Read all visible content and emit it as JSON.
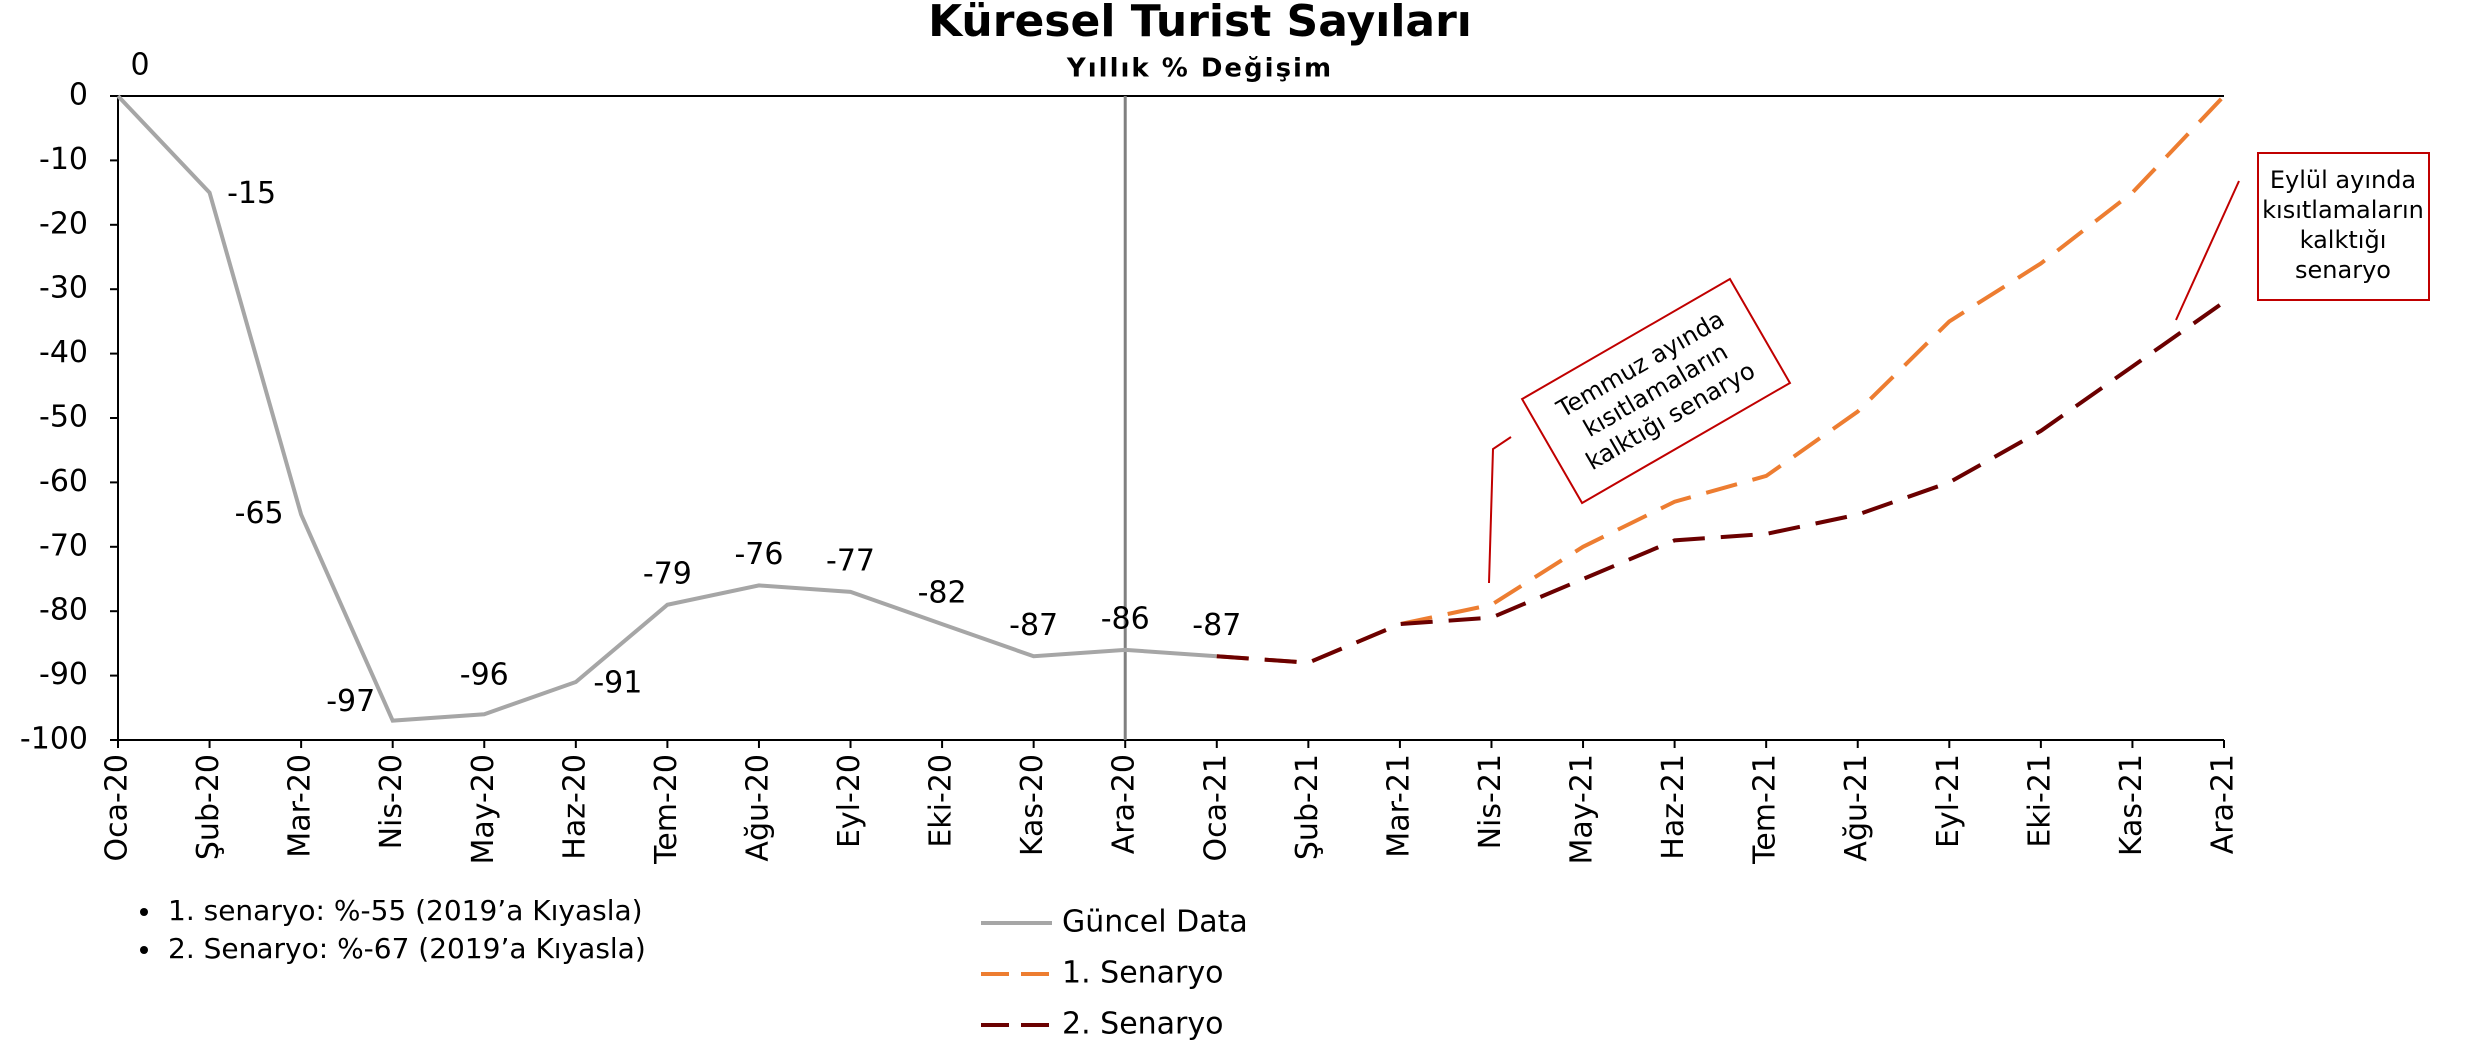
{
  "chart_data": {
    "type": "line",
    "title": "Küresel Turist Sayıları",
    "subtitle": "Yıllık % Değişim",
    "categories": [
      "Oca-20",
      "Şub-20",
      "Mar-20",
      "Nis-20",
      "May-20",
      "Haz-20",
      "Tem-20",
      "Ağu-20",
      "Eyl-20",
      "Eki-20",
      "Kas-20",
      "Ara-20",
      "Oca-21",
      "Şub-21",
      "Mar-21",
      "Nis-21",
      "May-21",
      "Haz-21",
      "Tem-21",
      "Ağu-21",
      "Eyl-21",
      "Eki-21",
      "Kas-21",
      "Ara-21"
    ],
    "series": [
      {
        "name": "Güncel Data",
        "color": "#a6a6a6",
        "dashed": false,
        "data_labels": true,
        "values": [
          0,
          -15,
          -65,
          -97,
          -96,
          -91,
          -79,
          -76,
          -77,
          -82,
          -87,
          -86,
          -87,
          null,
          null,
          null,
          null,
          null,
          null,
          null,
          null,
          null,
          null,
          null
        ]
      },
      {
        "name": "1. Senaryo",
        "color": "#ed7d31",
        "dashed": true,
        "data_labels": false,
        "values": [
          null,
          null,
          null,
          null,
          null,
          null,
          null,
          null,
          null,
          null,
          null,
          null,
          -87,
          -88,
          -82,
          -79,
          -70,
          -63,
          -59,
          -49,
          -35,
          -26,
          -15,
          0
        ]
      },
      {
        "name": "2. Senaryo",
        "color": "#6b0000",
        "dashed": true,
        "data_labels": false,
        "values": [
          null,
          null,
          null,
          null,
          null,
          null,
          null,
          null,
          null,
          null,
          null,
          null,
          -87,
          -88,
          -82,
          -81,
          -75,
          -69,
          -68,
          -65,
          -60,
          -52,
          -42,
          -32
        ]
      }
    ],
    "ylim": [
      -100,
      0
    ],
    "yticks": [
      0,
      -10,
      -20,
      -30,
      -40,
      -50,
      -60,
      -70,
      -80,
      -90,
      -100
    ],
    "vline_x": "Ara-20",
    "annotations": [
      {
        "lines": [
          "Temmuz ayında",
          "kısıtlamaların",
          "kalktığı senaryo"
        ]
      },
      {
        "lines": [
          "Eylül ayında",
          "kısıtlamaların",
          "kalktığı",
          "senaryo"
        ]
      }
    ],
    "notes": [
      "1. senaryo: %-55 (2019’a Kıyasla)",
      "2. Senaryo: %-67 (2019’a Kıyasla)"
    ]
  }
}
